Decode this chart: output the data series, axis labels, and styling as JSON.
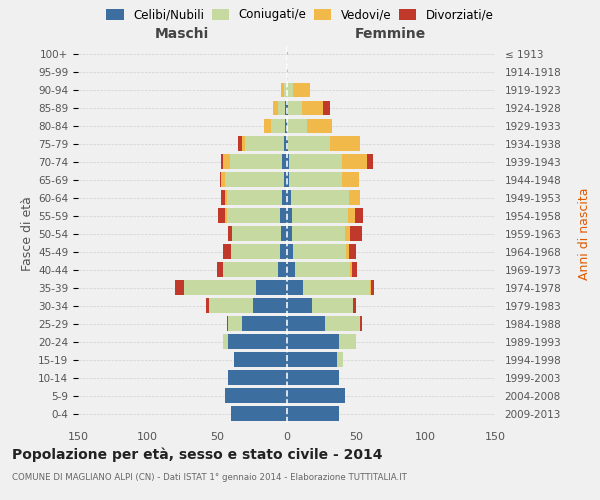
{
  "age_groups": [
    "0-4",
    "5-9",
    "10-14",
    "15-19",
    "20-24",
    "25-29",
    "30-34",
    "35-39",
    "40-44",
    "45-49",
    "50-54",
    "55-59",
    "60-64",
    "65-69",
    "70-74",
    "75-79",
    "80-84",
    "85-89",
    "90-94",
    "95-99",
    "100+"
  ],
  "birth_years": [
    "2009-2013",
    "2004-2008",
    "1999-2003",
    "1994-1998",
    "1989-1993",
    "1984-1988",
    "1979-1983",
    "1974-1978",
    "1969-1973",
    "1964-1968",
    "1959-1963",
    "1954-1958",
    "1949-1953",
    "1944-1948",
    "1939-1943",
    "1934-1938",
    "1929-1933",
    "1924-1928",
    "1919-1923",
    "1914-1918",
    "≤ 1913"
  ],
  "males_celibi": [
    40,
    44,
    42,
    38,
    42,
    32,
    24,
    22,
    6,
    5,
    4,
    5,
    3,
    2,
    3,
    2,
    1,
    1,
    0,
    0,
    0
  ],
  "males_coniugati": [
    0,
    0,
    0,
    0,
    4,
    10,
    32,
    52,
    40,
    35,
    35,
    38,
    40,
    42,
    38,
    28,
    10,
    5,
    2,
    0,
    0
  ],
  "males_vedovi": [
    0,
    0,
    0,
    0,
    0,
    0,
    0,
    0,
    0,
    0,
    0,
    1,
    1,
    3,
    5,
    2,
    5,
    4,
    2,
    0,
    0
  ],
  "males_divorziati": [
    0,
    0,
    0,
    0,
    0,
    1,
    2,
    6,
    4,
    6,
    3,
    5,
    3,
    1,
    1,
    3,
    0,
    0,
    0,
    0,
    0
  ],
  "females_nubili": [
    38,
    42,
    38,
    36,
    38,
    28,
    18,
    12,
    6,
    5,
    4,
    4,
    3,
    2,
    2,
    1,
    0,
    1,
    0,
    0,
    0
  ],
  "females_coniugate": [
    0,
    0,
    0,
    5,
    12,
    25,
    30,
    48,
    40,
    38,
    38,
    40,
    42,
    38,
    38,
    30,
    15,
    10,
    5,
    0,
    0
  ],
  "females_vedove": [
    0,
    0,
    0,
    0,
    0,
    0,
    0,
    1,
    1,
    2,
    4,
    5,
    8,
    12,
    18,
    22,
    18,
    15,
    12,
    1,
    1
  ],
  "females_divorziate": [
    0,
    0,
    0,
    0,
    0,
    1,
    2,
    2,
    4,
    5,
    8,
    6,
    0,
    0,
    4,
    0,
    0,
    5,
    0,
    0,
    0
  ],
  "color_celibi": "#3d6ea0",
  "color_coniugati": "#c5d9a0",
  "color_vedovi": "#f0b94a",
  "color_divorziati": "#c0392b",
  "xlim": 150,
  "bg_color": "#f0f0f0",
  "grid_color": "#cccccc",
  "title": "Popolazione per età, sesso e stato civile - 2014",
  "subtitle": "COMUNE DI MAGLIANO ALPI (CN) - Dati ISTAT 1° gennaio 2014 - Elaborazione TUTTITALIA.IT",
  "label_maschi": "Maschi",
  "label_femmine": "Femmine",
  "label_fasce": "Fasce di età",
  "label_anni": "Anni di nascita",
  "legend_labels": [
    "Celibi/Nubili",
    "Coniugati/e",
    "Vedovi/e",
    "Divorziati/e"
  ]
}
